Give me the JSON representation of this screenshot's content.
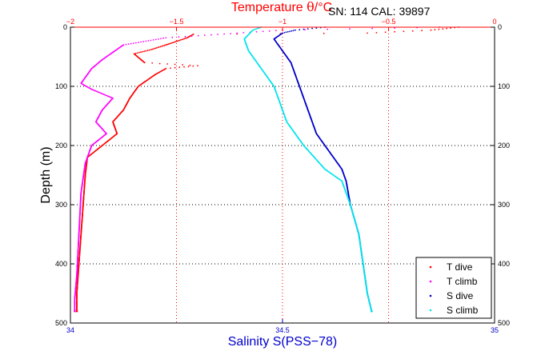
{
  "header": {
    "serial": "SN: 114  CAL: 39897"
  },
  "chart_data": {
    "type": "scatter",
    "xlabel": "Salinity S(PSS−78)",
    "x2label_prefix": "Temperature ",
    "x2label_symbol": "θ",
    "x2label_suffix": "/°C",
    "ylabel": "Depth (m)",
    "xlim": [
      34,
      35
    ],
    "x2lim": [
      -2,
      0
    ],
    "ylim": [
      0,
      500
    ],
    "y_reversed": true,
    "grid": true,
    "legend_position": "bottom-right",
    "x_ticks": [
      "34",
      "34.5",
      "35"
    ],
    "x2_ticks": [
      "−2",
      "−1.5",
      "−1",
      "−0.5",
      "0"
    ],
    "y_ticks": [
      "0",
      "100",
      "200",
      "300",
      "400",
      "500"
    ],
    "colors": {
      "t_dive": "#ff0000",
      "t_climb": "#ff00ff",
      "s_dive": "#0000cc",
      "s_climb": "#00e5ee",
      "temperature_axis": "#ff0000",
      "salinity_axis": "#0000cc",
      "grid_temperature": "#ff0000",
      "grid_default": "#000000"
    },
    "series": [
      {
        "name": "T dive",
        "axis": "temperature",
        "points": [
          [
            -0.17,
            0
          ],
          [
            -0.3,
            5
          ],
          [
            -0.6,
            10
          ],
          [
            -1.42,
            12
          ],
          [
            -1.45,
            18
          ],
          [
            -1.55,
            30
          ],
          [
            -1.62,
            38
          ],
          [
            -1.7,
            45
          ],
          [
            -1.65,
            60
          ],
          [
            -1.4,
            65
          ],
          [
            -1.55,
            70
          ],
          [
            -1.6,
            80
          ],
          [
            -1.68,
            100
          ],
          [
            -1.72,
            120
          ],
          [
            -1.75,
            140
          ],
          [
            -1.8,
            160
          ],
          [
            -1.78,
            180
          ],
          [
            -1.85,
            200
          ],
          [
            -1.92,
            220
          ],
          [
            -1.93,
            250
          ],
          [
            -1.94,
            300
          ],
          [
            -1.95,
            350
          ],
          [
            -1.96,
            400
          ],
          [
            -1.97,
            450
          ],
          [
            -1.97,
            480
          ]
        ]
      },
      {
        "name": "T climb",
        "axis": "temperature",
        "points": [
          [
            -0.26,
            0
          ],
          [
            -1.0,
            5
          ],
          [
            -1.55,
            18
          ],
          [
            -1.75,
            30
          ],
          [
            -1.85,
            55
          ],
          [
            -1.9,
            70
          ],
          [
            -1.95,
            95
          ],
          [
            -1.9,
            105
          ],
          [
            -1.8,
            120
          ],
          [
            -1.85,
            140
          ],
          [
            -1.88,
            160
          ],
          [
            -1.83,
            180
          ],
          [
            -1.9,
            200
          ],
          [
            -1.93,
            230
          ],
          [
            -1.95,
            280
          ],
          [
            -1.96,
            350
          ],
          [
            -1.97,
            420
          ],
          [
            -1.98,
            460
          ],
          [
            -1.98,
            480
          ]
        ]
      },
      {
        "name": "S dive",
        "axis": "salinity",
        "points": [
          [
            34.6,
            0
          ],
          [
            34.53,
            5
          ],
          [
            34.5,
            10
          ],
          [
            34.48,
            20
          ],
          [
            34.5,
            40
          ],
          [
            34.52,
            60
          ],
          [
            34.53,
            80
          ],
          [
            34.54,
            100
          ],
          [
            34.55,
            120
          ],
          [
            34.56,
            140
          ],
          [
            34.57,
            160
          ],
          [
            34.58,
            180
          ],
          [
            34.6,
            200
          ],
          [
            34.62,
            220
          ],
          [
            34.64,
            240
          ],
          [
            34.65,
            260
          ],
          [
            34.66,
            300
          ],
          [
            34.68,
            350
          ],
          [
            34.69,
            400
          ],
          [
            34.7,
            450
          ],
          [
            34.71,
            480
          ]
        ]
      },
      {
        "name": "S climb",
        "axis": "salinity",
        "points": [
          [
            34.45,
            0
          ],
          [
            34.43,
            5
          ],
          [
            34.41,
            20
          ],
          [
            34.42,
            40
          ],
          [
            34.44,
            60
          ],
          [
            34.46,
            80
          ],
          [
            34.48,
            100
          ],
          [
            34.49,
            120
          ],
          [
            34.5,
            140
          ],
          [
            34.51,
            160
          ],
          [
            34.53,
            180
          ],
          [
            34.55,
            200
          ],
          [
            34.6,
            240
          ],
          [
            34.64,
            260
          ],
          [
            34.66,
            300
          ],
          [
            34.68,
            350
          ],
          [
            34.69,
            400
          ],
          [
            34.7,
            450
          ],
          [
            34.71,
            480
          ]
        ]
      }
    ],
    "legend": [
      "T dive",
      "T climb",
      "S dive",
      "S climb"
    ]
  }
}
